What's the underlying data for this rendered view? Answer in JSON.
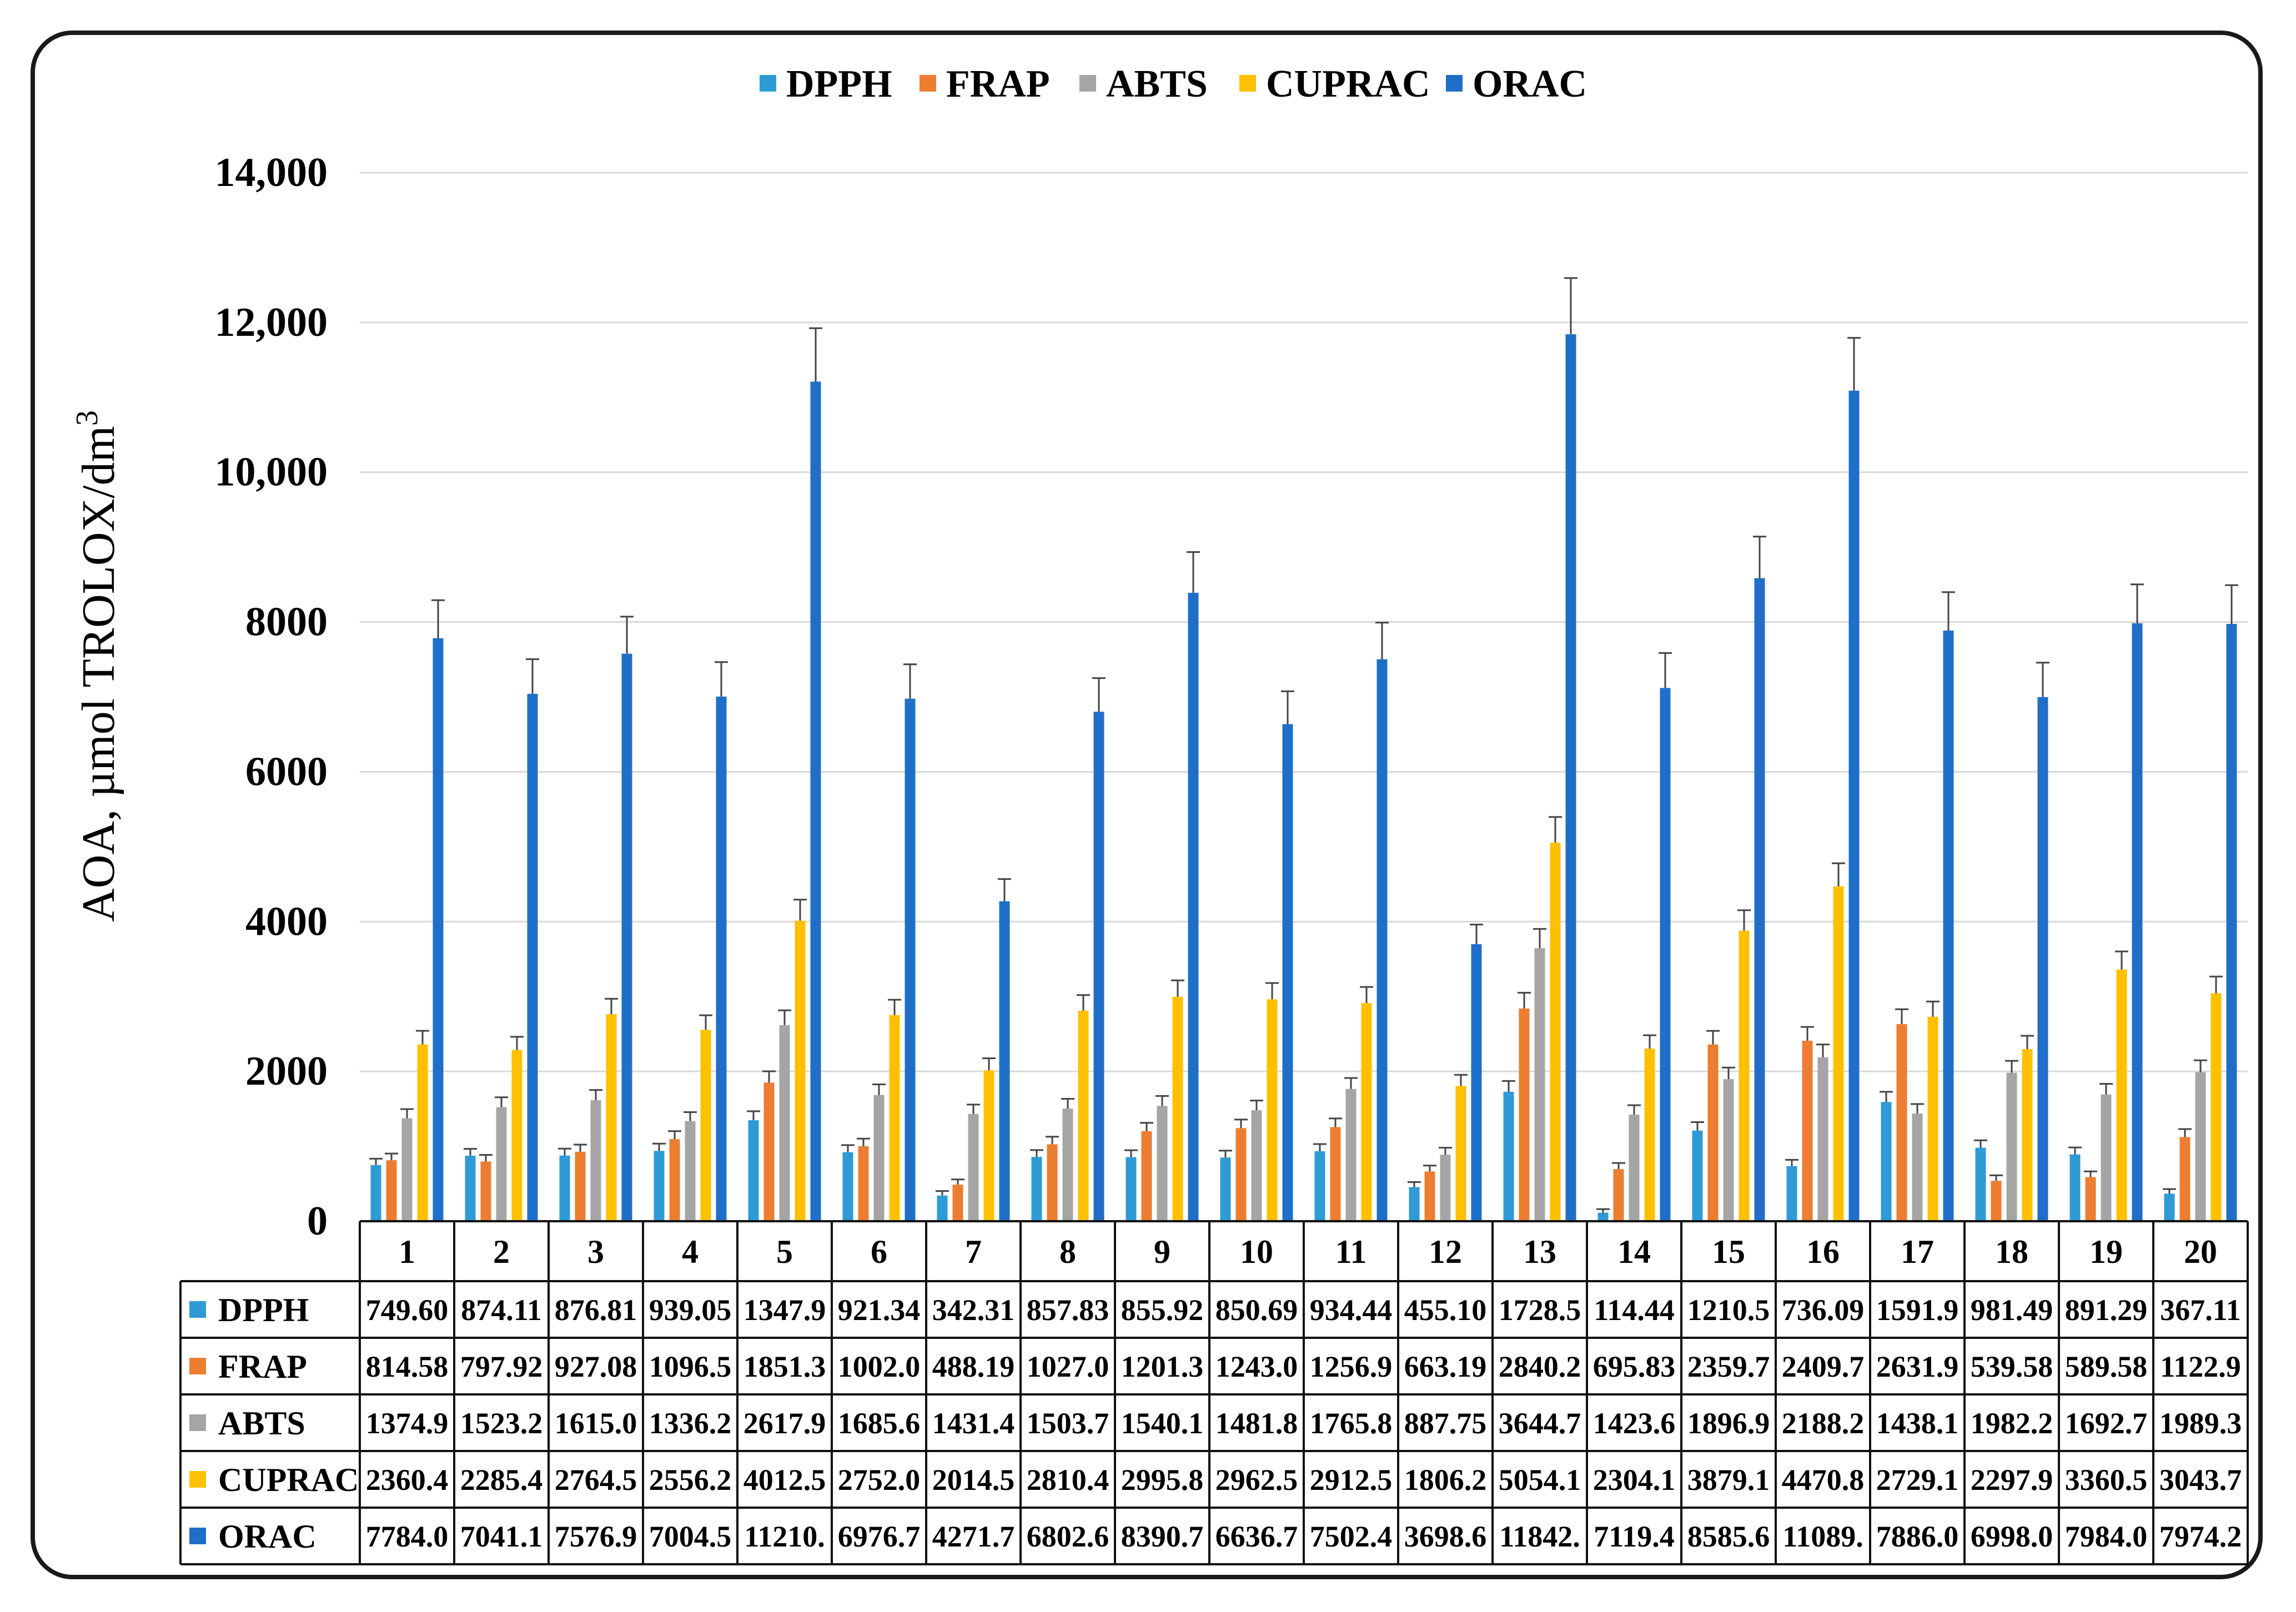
{
  "chart_data": {
    "type": "bar",
    "title": "",
    "xlabel": "",
    "ylabel": "AOA,  µmol TROLOX/dm",
    "ylabel_superscript": "3",
    "ylim": [
      0,
      14000
    ],
    "y_ticks": [
      0,
      2000,
      4000,
      6000,
      8000,
      10000,
      12000,
      14000
    ],
    "y_tick_labels": [
      "0",
      "2000",
      "4000",
      "6000",
      "8000",
      "10,000",
      "12,000",
      "14,000"
    ],
    "grid": true,
    "legend_position": "top",
    "error_bars": true,
    "categories": [
      "1",
      "2",
      "3",
      "4",
      "5",
      "6",
      "7",
      "8",
      "9",
      "10",
      "11",
      "12",
      "13",
      "14",
      "15",
      "16",
      "17",
      "18",
      "19",
      "20"
    ],
    "series": [
      {
        "name": "DPPH",
        "color": "#2e9bd6",
        "values": [
          749.6,
          874.11,
          876.81,
          939.05,
          1347.9,
          921.34,
          342.31,
          857.83,
          855.92,
          850.69,
          934.44,
          455.1,
          1728.5,
          114.44,
          1210.5,
          736.09,
          1591.9,
          981.49,
          891.29,
          367.11
        ],
        "labels": [
          "749.60",
          "874.11",
          "876.81",
          "939.05",
          "1347.9",
          "921.34",
          "342.31",
          "857.83",
          "855.92",
          "850.69",
          "934.44",
          "455.10",
          "1728.5",
          "114.44",
          "1210.5",
          "736.09",
          "1591.9",
          "981.49",
          "891.29",
          "367.11"
        ]
      },
      {
        "name": "FRAP",
        "color": "#ed7d31",
        "values": [
          814.58,
          797.92,
          927.08,
          1096.5,
          1851.3,
          1002.0,
          488.19,
          1027.0,
          1201.3,
          1243.0,
          1256.9,
          663.19,
          2840.2,
          695.83,
          2359.7,
          2409.7,
          2631.9,
          539.58,
          589.58,
          1122.9
        ],
        "labels": [
          "814.58",
          "797.92",
          "927.08",
          "1096.5",
          "1851.3",
          "1002.0",
          "488.19",
          "1027.0",
          "1201.3",
          "1243.0",
          "1256.9",
          "663.19",
          "2840.2",
          "695.83",
          "2359.7",
          "2409.7",
          "2631.9",
          "539.58",
          "589.58",
          "1122.9"
        ]
      },
      {
        "name": "ABTS",
        "color": "#a5a5a5",
        "values": [
          1374.9,
          1523.2,
          1615.0,
          1336.2,
          2617.9,
          1685.6,
          1431.4,
          1503.7,
          1540.1,
          1481.8,
          1765.8,
          887.75,
          3644.7,
          1423.6,
          1896.9,
          2188.2,
          1438.1,
          1982.2,
          1692.7,
          1989.3
        ],
        "labels": [
          "1374.9",
          "1523.2",
          "1615.0",
          "1336.2",
          "2617.9",
          "1685.6",
          "1431.4",
          "1503.7",
          "1540.1",
          "1481.8",
          "1765.8",
          "887.75",
          "3644.7",
          "1423.6",
          "1896.9",
          "2188.2",
          "1438.1",
          "1982.2",
          "1692.7",
          "1989.3"
        ]
      },
      {
        "name": "CUPRAC",
        "color": "#ffc000",
        "values": [
          2360.4,
          2285.4,
          2764.5,
          2556.2,
          4012.5,
          2752.0,
          2014.5,
          2810.4,
          2995.8,
          2962.5,
          2912.5,
          1806.2,
          5054.1,
          2304.1,
          3879.1,
          4470.8,
          2729.1,
          2297.9,
          3360.5,
          3043.7
        ],
        "labels": [
          "2360.4",
          "2285.4",
          "2764.5",
          "2556.2",
          "4012.5",
          "2752.0",
          "2014.5",
          "2810.4",
          "2995.8",
          "2962.5",
          "2912.5",
          "1806.2",
          "5054.1",
          "2304.1",
          "3879.1",
          "4470.8",
          "2729.1",
          "2297.9",
          "3360.5",
          "3043.7"
        ]
      },
      {
        "name": "ORAC",
        "color": "#1f6fc9",
        "values": [
          7784.0,
          7041.1,
          7576.9,
          7004.5,
          11210,
          6976.7,
          4271.7,
          6802.6,
          8390.7,
          6636.7,
          7502.4,
          3698.6,
          11842,
          7119.4,
          8585.6,
          11089,
          7886.0,
          6998.0,
          7984.0,
          7974.2
        ],
        "labels": [
          "7784.0",
          "7041.1",
          "7576.9",
          "7004.5",
          "11210.",
          "6976.7",
          "4271.7",
          "6802.6",
          "8390.7",
          "6636.7",
          "7502.4",
          "3698.6",
          "11842.",
          "7119.4",
          "8585.6",
          "11089.",
          "7886.0",
          "6998.0",
          "7984.0",
          "7974.2"
        ]
      }
    ]
  }
}
